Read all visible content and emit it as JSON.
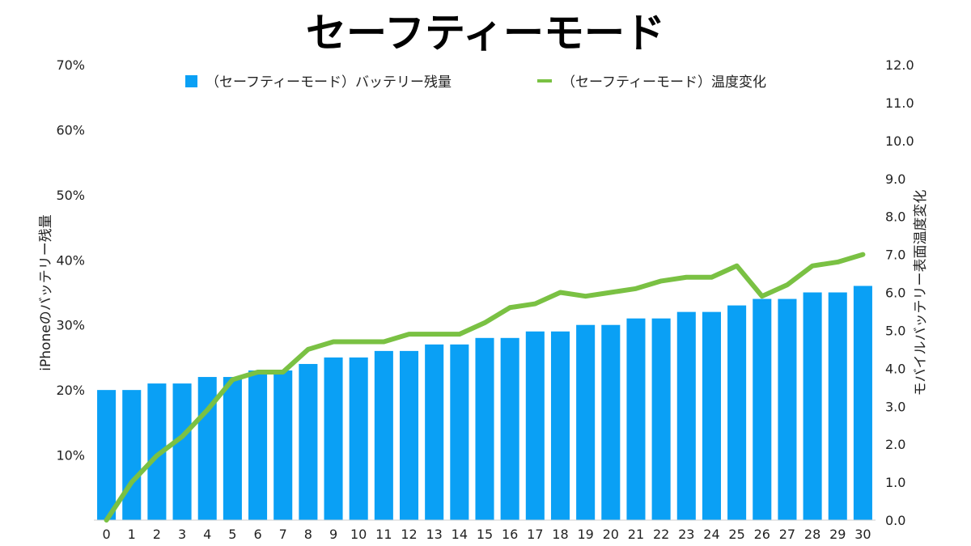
{
  "chart_data": {
    "type": "bar+line",
    "title": "セーフティーモード",
    "categories": [
      "0",
      "1",
      "2",
      "3",
      "4",
      "5",
      "6",
      "7",
      "8",
      "9",
      "10",
      "11",
      "12",
      "13",
      "14",
      "15",
      "16",
      "17",
      "18",
      "19",
      "20",
      "21",
      "22",
      "23",
      "24",
      "25",
      "26",
      "27",
      "28",
      "29",
      "30"
    ],
    "y_left": {
      "label": "iPhoneのバッテリー残量",
      "ticks": [
        "10%",
        "20%",
        "30%",
        "40%",
        "50%",
        "60%",
        "70%"
      ],
      "tick_values": [
        10,
        20,
        30,
        40,
        50,
        60,
        70
      ],
      "range": [
        0,
        70
      ]
    },
    "y_right": {
      "label": "モバイルバッテリー表面温度変化",
      "ticks": [
        "0.0",
        "1.0",
        "2.0",
        "3.0",
        "4.0",
        "5.0",
        "6.0",
        "7.0",
        "8.0",
        "9.0",
        "10.0",
        "11.0",
        "12.0"
      ],
      "tick_values": [
        0,
        1,
        2,
        3,
        4,
        5,
        6,
        7,
        8,
        9,
        10,
        11,
        12
      ],
      "range": [
        0,
        12
      ]
    },
    "series": [
      {
        "name": "（セーフティーモード）バッテリー残量",
        "type": "bar",
        "axis": "left",
        "color": "#0aa0f5",
        "values": [
          20,
          20,
          21,
          21,
          22,
          22,
          23,
          23,
          24,
          25,
          25,
          26,
          26,
          27,
          27,
          28,
          28,
          29,
          29,
          30,
          30,
          31,
          31,
          32,
          32,
          33,
          34,
          34,
          35,
          35,
          36
        ]
      },
      {
        "name": "（セーフティーモード）温度変化",
        "type": "line",
        "axis": "right",
        "color": "#7ac143",
        "values": [
          0.0,
          1.0,
          1.7,
          2.2,
          2.9,
          3.7,
          3.9,
          3.9,
          4.5,
          4.7,
          4.7,
          4.7,
          4.9,
          4.9,
          4.9,
          5.2,
          5.6,
          5.7,
          6.0,
          5.9,
          6.0,
          6.1,
          6.3,
          6.4,
          6.4,
          6.7,
          5.9,
          6.2,
          6.7,
          6.8,
          7.0
        ]
      }
    ],
    "legend_position": "top",
    "grid": false
  }
}
